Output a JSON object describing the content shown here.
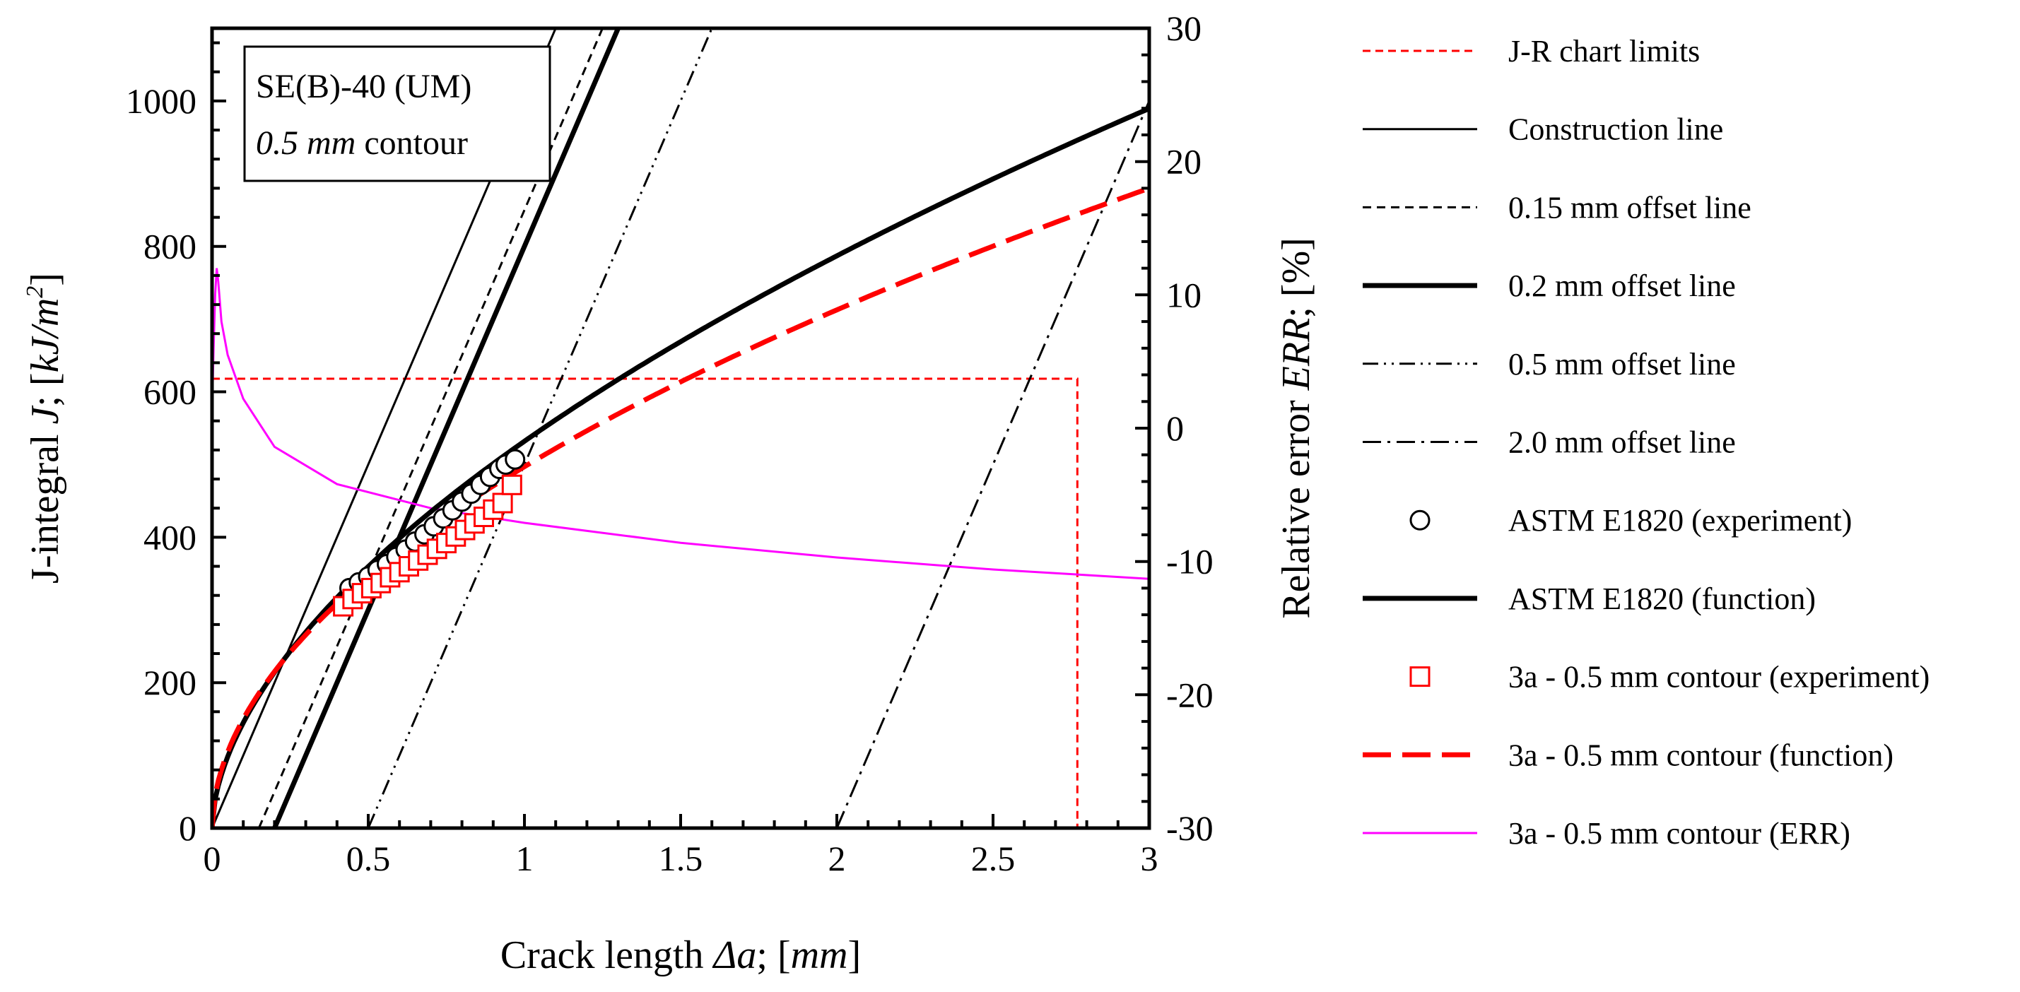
{
  "chart_data": {
    "type": "line",
    "annotation": {
      "line1": "SE(B)-40 (UM)",
      "line2_italic": "0.5 mm",
      "line2_rest": " contour"
    },
    "xaxis": {
      "title_plain": "Crack length ",
      "title_italic": "Δa",
      "title_tail": "; [",
      "title_unit": "mm",
      "title_close": "]",
      "range": [
        0,
        3
      ],
      "ticks": [
        0,
        0.5,
        1,
        1.5,
        2,
        2.5,
        3
      ],
      "tick_labels": [
        "0",
        "0.5",
        "1",
        "1.5",
        "2",
        "2.5",
        "3"
      ]
    },
    "yaxis": {
      "title_plain": "J-integral ",
      "title_italic": "J",
      "title_tail": "; [",
      "title_unit": "kJ/m",
      "title_sup": "2",
      "title_close": "]",
      "range": [
        0,
        1100
      ],
      "ticks": [
        0,
        200,
        400,
        600,
        800,
        1000
      ],
      "tick_labels": [
        "0",
        "200",
        "400",
        "600",
        "800",
        "1000"
      ]
    },
    "y2axis": {
      "title_plain": "Relative error ",
      "title_italic": "ERR",
      "title_tail": "; [%]",
      "range": [
        -30,
        30
      ],
      "ticks": [
        -30,
        -20,
        -10,
        0,
        10,
        20,
        30
      ],
      "tick_labels": [
        "-30",
        "-20",
        "-10",
        "0",
        "10",
        "20",
        "30"
      ]
    },
    "flow_stress_slope": 1000,
    "series": [
      {
        "name": "J-R chart limits",
        "kind": "limits",
        "J_max": 618,
        "da_max": 2.77,
        "color": "#ff0000"
      },
      {
        "name": "Construction line",
        "kind": "offset",
        "offset": 0,
        "color": "#000000",
        "dash": ""
      },
      {
        "name": "0.15 mm offset line",
        "kind": "offset",
        "offset": 0.15,
        "color": "#000000",
        "dash": "12 8"
      },
      {
        "name": "0.2 mm offset line",
        "kind": "offset",
        "offset": 0.2,
        "color": "#000000",
        "dash": "",
        "width": 7
      },
      {
        "name": "0.5 mm offset line",
        "kind": "offset",
        "offset": 0.5,
        "color": "#000000",
        "dash": "22 8 3 8 3 8"
      },
      {
        "name": "2.0 mm offset line",
        "kind": "offset",
        "offset": 2.0,
        "color": "#000000",
        "dash": "26 9 4 9"
      },
      {
        "name": "ASTM E1820 (experiment)",
        "kind": "points",
        "marker": "circle",
        "color": "#000000",
        "x": [
          0.44,
          0.47,
          0.5,
          0.53,
          0.56,
          0.59,
          0.62,
          0.65,
          0.68,
          0.71,
          0.74,
          0.77,
          0.8,
          0.83,
          0.86,
          0.89,
          0.92,
          0.94,
          0.97
        ],
        "y": [
          330,
          338,
          346,
          355,
          363,
          373,
          383,
          394,
          404,
          415,
          426,
          437,
          449,
          460,
          472,
          483,
          494,
          500,
          507
        ]
      },
      {
        "name": "ASTM E1820 (function)",
        "kind": "power",
        "C": 532,
        "m": 0.565,
        "color": "#000000",
        "dash": "",
        "width": 7
      },
      {
        "name": "3a - 0.5 mm contour (experiment)",
        "kind": "points",
        "marker": "square",
        "color": "#ff0000",
        "x": [
          0.42,
          0.45,
          0.48,
          0.51,
          0.54,
          0.57,
          0.6,
          0.63,
          0.66,
          0.69,
          0.72,
          0.75,
          0.78,
          0.81,
          0.84,
          0.87,
          0.9,
          0.93,
          0.96
        ],
        "y": [
          305,
          315,
          323,
          330,
          337,
          345,
          352,
          360,
          368,
          376,
          384,
          392,
          401,
          410,
          419,
          428,
          438,
          447,
          472
        ]
      },
      {
        "name": "3a - 0.5 mm contour (function)",
        "kind": "power",
        "C": 497,
        "m": 0.52,
        "color": "#ff0000",
        "dash": "40 16",
        "width": 7
      },
      {
        "name": "3a - 0.5 mm contour (ERR)",
        "kind": "err",
        "color": "#ff00ff",
        "x": [
          0.0,
          0.005,
          0.01,
          0.015,
          0.02,
          0.03,
          0.05,
          0.1,
          0.2,
          0.4,
          0.7,
          1.0,
          1.5,
          2.0,
          2.5,
          3.0
        ],
        "y": [
          1.2,
          6.0,
          10.0,
          12.0,
          11.0,
          8.0,
          5.5,
          2.2,
          -1.4,
          -4.2,
          -6.0,
          -7.1,
          -8.6,
          -9.7,
          -10.6,
          -11.3
        ]
      }
    ]
  }
}
